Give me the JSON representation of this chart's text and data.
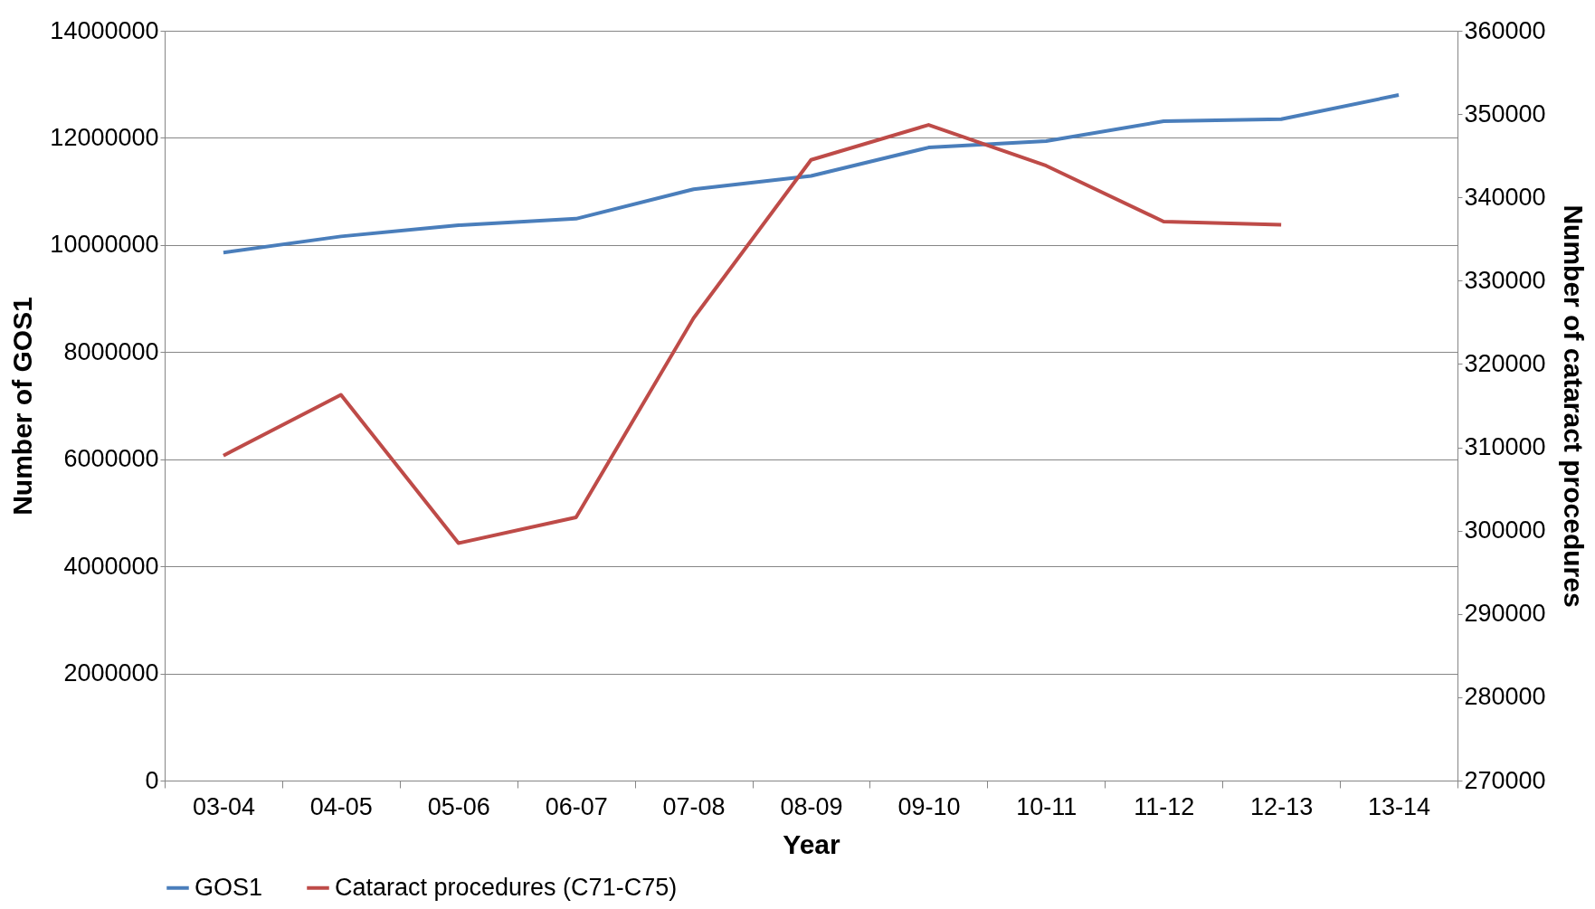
{
  "chart_data": {
    "type": "line",
    "xlabel": "Year",
    "ylabel": "Number of GOS1",
    "y2label": "Number of cataract procedures",
    "categories": [
      "03-04",
      "04-05",
      "05-06",
      "06-07",
      "07-08",
      "08-09",
      "09-10",
      "10-11",
      "11-12",
      "12-13",
      "13-14"
    ],
    "series": [
      {
        "name": "GOS1",
        "color": "#4a7ebb",
        "values": [
          9860000,
          10160000,
          10370000,
          10490000,
          11040000,
          11290000,
          11820000,
          11940000,
          12310000,
          12350000,
          12800000
        ]
      },
      {
        "name": "Cataract procedures (C71-C75)",
        "color": "#be4b48",
        "axis": "y2",
        "values": [
          309000,
          316300,
          298500,
          301600,
          325500,
          344500,
          348700,
          343800,
          337100,
          336700,
          null
        ]
      }
    ],
    "ylim": [
      0,
      14000000
    ],
    "yticks": [
      0,
      2000000,
      4000000,
      6000000,
      8000000,
      10000000,
      12000000,
      14000000
    ],
    "y2lim": [
      270000,
      360000
    ],
    "y2ticks": [
      270000,
      280000,
      290000,
      300000,
      310000,
      320000,
      330000,
      340000,
      350000,
      360000
    ],
    "grid": "y",
    "legend": "bottom",
    "marker": "none",
    "line_style": "solid"
  }
}
